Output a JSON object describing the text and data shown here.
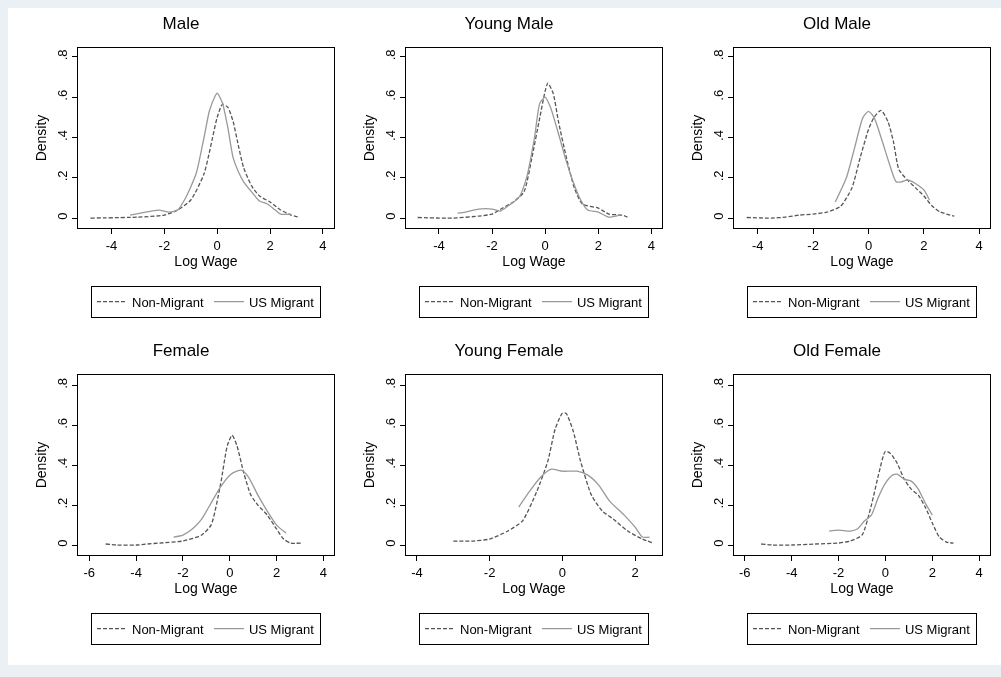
{
  "chart_data": [
    {
      "type": "line",
      "title": "Male",
      "xlabel": "Log Wage",
      "ylabel": "Density",
      "xlim": [
        -5.27,
        4.42
      ],
      "ylim": [
        -0.049,
        0.844
      ],
      "xticks": [
        -4,
        -2,
        0,
        2,
        4
      ],
      "yticks": [
        {
          "value": 0,
          "label": "0"
        },
        {
          "value": 0.2,
          "label": ".2"
        },
        {
          "value": 0.4,
          "label": ".4"
        },
        {
          "value": 0.6,
          "label": ".6"
        },
        {
          "value": 0.8,
          "label": ".8"
        }
      ],
      "legend": "bottom",
      "series": [
        {
          "name": "Non-Migrant",
          "color": "#555555",
          "line_style": "dashed",
          "x": [
            -4.8,
            -3,
            -2,
            -1.5,
            -1,
            -0.5,
            0,
            0.2,
            0.4,
            0.6,
            0.8,
            1,
            1.3,
            1.6,
            2,
            2.4,
            2.8,
            3.1
          ],
          "values": [
            0,
            0.005,
            0.015,
            0.04,
            0.09,
            0.22,
            0.5,
            0.565,
            0.55,
            0.48,
            0.36,
            0.25,
            0.16,
            0.11,
            0.08,
            0.04,
            0.015,
            0.005
          ]
        },
        {
          "name": "US Migrant",
          "color": "#999999",
          "line_style": "solid",
          "x": [
            -3.3,
            -2.5,
            -2.2,
            -1.8,
            -1.5,
            -1.2,
            -0.8,
            -0.5,
            -0.3,
            -0.1,
            0,
            0.2,
            0.4,
            0.6,
            0.8,
            1,
            1.3,
            1.6,
            1.9,
            2.2,
            2.4,
            2.8
          ],
          "values": [
            0.015,
            0.035,
            0.04,
            0.03,
            0.04,
            0.1,
            0.22,
            0.4,
            0.53,
            0.6,
            0.62,
            0.57,
            0.45,
            0.3,
            0.23,
            0.18,
            0.13,
            0.085,
            0.07,
            0.04,
            0.02,
            0.02
          ]
        }
      ]
    },
    {
      "type": "line",
      "title": "Young Male",
      "xlabel": "Log Wage",
      "ylabel": "Density",
      "xlim": [
        -5.24,
        4.4
      ],
      "ylim": [
        -0.049,
        0.844
      ],
      "xticks": [
        -4,
        -2,
        0,
        2,
        4
      ],
      "yticks": [
        {
          "value": 0,
          "label": "0"
        },
        {
          "value": 0.2,
          "label": ".2"
        },
        {
          "value": 0.4,
          "label": ".4"
        },
        {
          "value": 0.6,
          "label": ".6"
        },
        {
          "value": 0.8,
          "label": ".8"
        }
      ],
      "legend": "bottom",
      "series": [
        {
          "name": "Non-Migrant",
          "color": "#555555",
          "line_style": "dashed",
          "x": [
            -4.8,
            -3.5,
            -2.5,
            -2,
            -1.6,
            -1.2,
            -0.8,
            -0.5,
            -0.2,
            0,
            0.1,
            0.3,
            0.5,
            0.8,
            1.1,
            1.4,
            2,
            2.4,
            2.9,
            3.1
          ],
          "values": [
            0.003,
            0,
            0.01,
            0.02,
            0.05,
            0.08,
            0.13,
            0.3,
            0.5,
            0.63,
            0.67,
            0.62,
            0.48,
            0.3,
            0.15,
            0.07,
            0.05,
            0.02,
            0.015,
            0.005
          ]
        },
        {
          "name": "US Migrant",
          "color": "#999999",
          "line_style": "solid",
          "x": [
            -3.3,
            -3,
            -2.5,
            -2,
            -1.7,
            -1.4,
            -1,
            -0.7,
            -0.4,
            -0.2,
            0,
            0.2,
            0.5,
            0.8,
            1,
            1.3,
            1.6,
            2,
            2.4,
            2.8
          ],
          "values": [
            0.025,
            0.03,
            0.045,
            0.045,
            0.035,
            0.06,
            0.1,
            0.2,
            0.4,
            0.57,
            0.6,
            0.55,
            0.42,
            0.28,
            0.2,
            0.1,
            0.04,
            0.03,
            0.005,
            0.015
          ]
        }
      ]
    },
    {
      "type": "line",
      "title": "Old Male",
      "xlabel": "Log Wage",
      "ylabel": "Density",
      "xlim": [
        -4.86,
        4.39
      ],
      "ylim": [
        -0.049,
        0.844
      ],
      "xticks": [
        -4,
        -2,
        0,
        2,
        4
      ],
      "yticks": [
        {
          "value": 0,
          "label": "0"
        },
        {
          "value": 0.2,
          "label": ".2"
        },
        {
          "value": 0.4,
          "label": ".4"
        },
        {
          "value": 0.6,
          "label": ".6"
        },
        {
          "value": 0.8,
          "label": ".8"
        }
      ],
      "legend": "bottom",
      "series": [
        {
          "name": "Non-Migrant",
          "color": "#555555",
          "line_style": "dashed",
          "x": [
            -4.4,
            -3.5,
            -3,
            -2.5,
            -2,
            -1.5,
            -1,
            -0.6,
            -0.3,
            0,
            0.2,
            0.45,
            0.7,
            0.9,
            1.1,
            1.4,
            1.7,
            2,
            2.3,
            2.6,
            3.1
          ],
          "values": [
            0.003,
            0,
            0.005,
            0.015,
            0.02,
            0.03,
            0.06,
            0.15,
            0.3,
            0.44,
            0.5,
            0.535,
            0.48,
            0.38,
            0.24,
            0.19,
            0.15,
            0.11,
            0.06,
            0.03,
            0.01
          ]
        },
        {
          "name": "US Migrant",
          "color": "#999999",
          "line_style": "solid",
          "x": [
            -1.2,
            -0.8,
            -0.5,
            -0.2,
            0,
            0.2,
            0.5,
            0.8,
            1,
            1.2,
            1.4,
            1.6,
            2,
            2.2
          ],
          "values": [
            0.08,
            0.2,
            0.35,
            0.5,
            0.53,
            0.5,
            0.38,
            0.25,
            0.18,
            0.18,
            0.19,
            0.18,
            0.14,
            0.09
          ]
        }
      ]
    },
    {
      "type": "line",
      "title": "Female",
      "xlabel": "Log Wage",
      "ylabel": "Density",
      "xlim": [
        -6.48,
        4.45
      ],
      "ylim": [
        -0.05,
        0.852
      ],
      "xticks": [
        -6,
        -4,
        -2,
        0,
        2,
        4
      ],
      "yticks": [
        {
          "value": 0,
          "label": "0"
        },
        {
          "value": 0.2,
          "label": ".2"
        },
        {
          "value": 0.4,
          "label": ".4"
        },
        {
          "value": 0.6,
          "label": ".6"
        },
        {
          "value": 0.8,
          "label": ".8"
        }
      ],
      "legend": "bottom",
      "series": [
        {
          "name": "Non-Migrant",
          "color": "#555555",
          "line_style": "dashed",
          "x": [
            -5.3,
            -4.8,
            -4,
            -3.5,
            -3,
            -2,
            -1.2,
            -0.8,
            -0.4,
            -0.1,
            0.1,
            0.3,
            0.6,
            0.9,
            1.2,
            1.6,
            2,
            2.3,
            2.6,
            3.1
          ],
          "values": [
            0.005,
            0,
            0,
            0.005,
            0.01,
            0.02,
            0.05,
            0.1,
            0.3,
            0.5,
            0.55,
            0.5,
            0.36,
            0.25,
            0.2,
            0.15,
            0.08,
            0.03,
            0.01,
            0.01
          ]
        },
        {
          "name": "US Migrant",
          "color": "#999999",
          "line_style": "solid",
          "x": [
            -2.4,
            -2,
            -1.6,
            -1.2,
            -0.8,
            -0.4,
            0,
            0.3,
            0.5,
            0.8,
            1.2,
            1.6,
            2,
            2.4
          ],
          "values": [
            0.04,
            0.05,
            0.08,
            0.13,
            0.21,
            0.29,
            0.35,
            0.37,
            0.375,
            0.34,
            0.25,
            0.17,
            0.1,
            0.06
          ]
        }
      ]
    },
    {
      "type": "line",
      "title": "Young Female",
      "xlabel": "Log Wage",
      "ylabel": "Density",
      "xlim": [
        -4.3,
        2.74
      ],
      "ylim": [
        -0.05,
        0.852
      ],
      "xticks": [
        -4,
        -2,
        0,
        2
      ],
      "yticks": [
        {
          "value": 0,
          "label": "0"
        },
        {
          "value": 0.2,
          "label": ".2"
        },
        {
          "value": 0.4,
          "label": ".4"
        },
        {
          "value": 0.6,
          "label": ".6"
        },
        {
          "value": 0.8,
          "label": ".8"
        }
      ],
      "legend": "bottom",
      "series": [
        {
          "name": "Non-Migrant",
          "color": "#555555",
          "line_style": "dashed",
          "x": [
            -3,
            -2.5,
            -2,
            -1.5,
            -1.1,
            -0.7,
            -0.4,
            -0.2,
            0,
            0.1,
            0.3,
            0.5,
            0.8,
            1.1,
            1.4,
            1.8,
            2.2,
            2.5
          ],
          "values": [
            0.02,
            0.02,
            0.03,
            0.07,
            0.12,
            0.27,
            0.42,
            0.58,
            0.66,
            0.66,
            0.57,
            0.42,
            0.25,
            0.17,
            0.13,
            0.07,
            0.03,
            0.01
          ]
        },
        {
          "name": "US Migrant",
          "color": "#999999",
          "line_style": "solid",
          "x": [
            -1.2,
            -0.9,
            -0.6,
            -0.3,
            0,
            0.4,
            0.7,
            1,
            1.3,
            1.7,
            2,
            2.2,
            2.4
          ],
          "values": [
            0.19,
            0.27,
            0.34,
            0.38,
            0.37,
            0.37,
            0.35,
            0.3,
            0.22,
            0.15,
            0.09,
            0.04,
            0.04
          ]
        }
      ]
    },
    {
      "type": "line",
      "title": "Old Female",
      "xlabel": "Log Wage",
      "ylabel": "Density",
      "xlim": [
        -6.46,
        4.46
      ],
      "ylim": [
        -0.05,
        0.852
      ],
      "xticks": [
        -6,
        -4,
        -2,
        0,
        2,
        4
      ],
      "yticks": [
        {
          "value": 0,
          "label": "0"
        },
        {
          "value": 0.2,
          "label": ".2"
        },
        {
          "value": 0.4,
          "label": ".4"
        },
        {
          "value": 0.6,
          "label": ".6"
        },
        {
          "value": 0.8,
          "label": ".8"
        }
      ],
      "legend": "bottom",
      "series": [
        {
          "name": "Non-Migrant",
          "color": "#555555",
          "line_style": "dashed",
          "x": [
            -5.3,
            -4.8,
            -4,
            -3,
            -2,
            -1.5,
            -1,
            -0.6,
            -0.3,
            0,
            0.2,
            0.5,
            0.8,
            1.1,
            1.4,
            1.7,
            2,
            2.3,
            2.6,
            2.9
          ],
          "values": [
            0.005,
            0,
            0,
            0.005,
            0.01,
            0.02,
            0.05,
            0.2,
            0.35,
            0.47,
            0.46,
            0.41,
            0.33,
            0.28,
            0.25,
            0.19,
            0.11,
            0.04,
            0.015,
            0.01
          ]
        },
        {
          "name": "US Migrant",
          "color": "#999999",
          "line_style": "solid",
          "x": [
            -2.4,
            -2,
            -1.5,
            -1.2,
            -0.9,
            -0.6,
            -0.3,
            0,
            0.3,
            0.5,
            0.8,
            1.1,
            1.4,
            1.7,
            2
          ],
          "values": [
            0.07,
            0.075,
            0.07,
            0.08,
            0.12,
            0.15,
            0.24,
            0.31,
            0.35,
            0.355,
            0.33,
            0.32,
            0.28,
            0.21,
            0.15
          ]
        }
      ]
    }
  ]
}
